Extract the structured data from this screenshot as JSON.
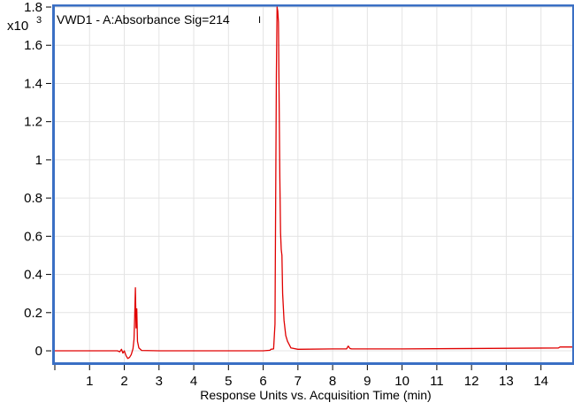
{
  "chart_data": {
    "type": "line",
    "title": "VWD1 - A:Absorbance Sig=214",
    "title_suffix": "I",
    "xlabel": "Response Units vs. Acquisition Time (min)",
    "y_multiplier": "x10",
    "y_multiplier_exp": "3",
    "xlim": [
      0.0,
      14.9
    ],
    "ylim": [
      -0.06,
      1.8
    ],
    "x_ticks": [
      1,
      2,
      3,
      4,
      5,
      6,
      7,
      8,
      9,
      10,
      11,
      12,
      13,
      14
    ],
    "y_ticks": [
      0,
      0.2,
      0.4,
      0.6,
      0.8,
      1,
      1.2,
      1.4,
      1.6,
      1.8
    ],
    "y_tick_labels": [
      "0",
      "0.2",
      "0.4",
      "0.6",
      "0.8",
      "1",
      "1.2",
      "1.4",
      "1.6",
      "1.8"
    ],
    "grid": true,
    "series": [
      {
        "color": "#e00000",
        "x": [
          0.0,
          1.8,
          1.87,
          1.92,
          1.96,
          2.0,
          2.05,
          2.1,
          2.15,
          2.2,
          2.25,
          2.28,
          2.3,
          2.32,
          2.34,
          2.36,
          2.38,
          2.42,
          2.5,
          3.0,
          4.0,
          5.0,
          6.0,
          6.2,
          6.22,
          6.3,
          6.34,
          6.36,
          6.38,
          6.4,
          6.42,
          6.44,
          6.46,
          6.48,
          6.5,
          6.52,
          6.54,
          6.56,
          6.6,
          6.65,
          6.7,
          6.8,
          7.0,
          8.0,
          8.4,
          8.45,
          8.5,
          8.55,
          8.6,
          9.0,
          10.0,
          12.0,
          14.5,
          14.55,
          14.9
        ],
        "y": [
          0.0,
          0.0,
          -0.005,
          0.008,
          -0.012,
          0.0,
          -0.025,
          -0.04,
          -0.035,
          -0.02,
          0.01,
          0.06,
          0.18,
          0.33,
          0.12,
          0.22,
          0.05,
          0.015,
          0.002,
          0.0,
          0.0,
          0.0,
          0.0,
          0.003,
          0.008,
          0.01,
          0.14,
          0.8,
          1.45,
          1.8,
          1.78,
          1.72,
          1.3,
          0.9,
          0.62,
          0.53,
          0.5,
          0.3,
          0.16,
          0.08,
          0.05,
          0.015,
          0.008,
          0.01,
          0.01,
          0.025,
          0.012,
          0.01,
          0.01,
          0.01,
          0.01,
          0.012,
          0.015,
          0.02,
          0.02
        ]
      }
    ]
  }
}
